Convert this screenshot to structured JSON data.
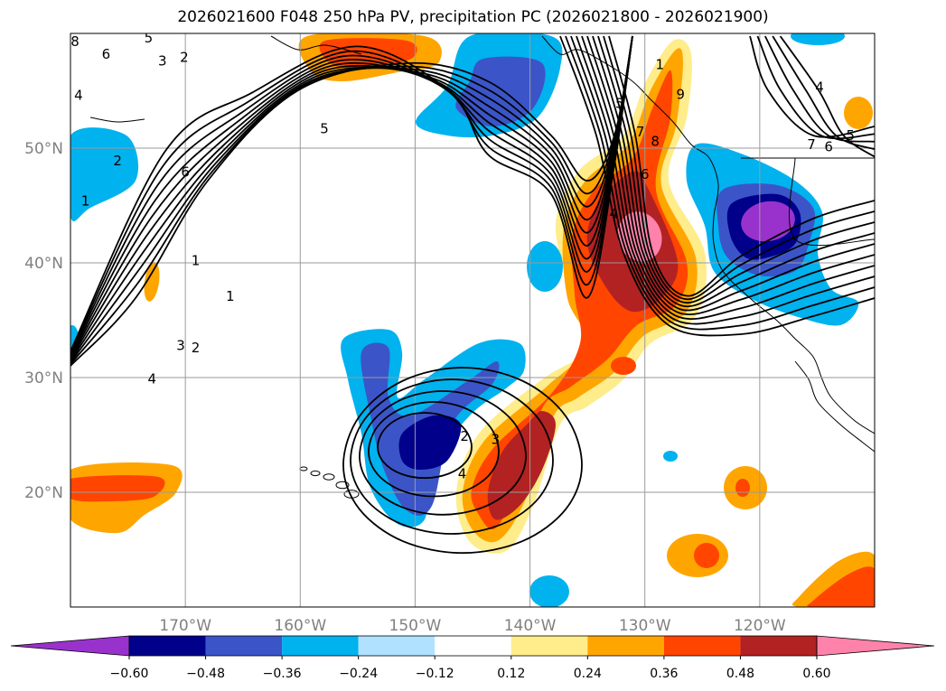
{
  "title": "2026021600 F048 250 hPa PV, precipitation PC (2026021800 - 2026021900)",
  "chart_data": {
    "type": "heatmap",
    "title": "2026021600 F048 250 hPa PV, precipitation PC (2026021800 - 2026021900)",
    "xlabel": "",
    "ylabel": "",
    "xlim": [
      -180,
      -110
    ],
    "ylim": [
      10,
      60
    ],
    "x_ticks": [
      {
        "value": -170,
        "label": "170°W"
      },
      {
        "value": -160,
        "label": "160°W"
      },
      {
        "value": -150,
        "label": "150°W"
      },
      {
        "value": -140,
        "label": "140°W"
      },
      {
        "value": -130,
        "label": "130°W"
      },
      {
        "value": -120,
        "label": "120°W"
      }
    ],
    "y_ticks": [
      {
        "value": 20,
        "label": "20°N"
      },
      {
        "value": 30,
        "label": "30°N"
      },
      {
        "value": 40,
        "label": "40°N"
      },
      {
        "value": 50,
        "label": "50°N"
      }
    ],
    "grid": true,
    "colorbar": {
      "position": "bottom",
      "extend": "both",
      "levels": [
        -0.6,
        -0.48,
        -0.36,
        -0.24,
        -0.12,
        0.12,
        0.24,
        0.36,
        0.48,
        0.6
      ],
      "level_labels": [
        "−0.60",
        "−0.48",
        "−0.36",
        "−0.24",
        "−0.12",
        "0.12",
        "0.24",
        "0.36",
        "0.48",
        "0.60"
      ],
      "colors": [
        "#9932cc",
        "#00008b",
        "#3b55c8",
        "#00b2ee",
        "#b0e2ff",
        "#ffffff",
        "#ffec8b",
        "#ffa500",
        "#ff4500",
        "#b22222",
        "#ff82ab"
      ]
    },
    "fields": [
      {
        "name": "PV (250 hPa) contours",
        "contour_levels": [
          1,
          2,
          3,
          4,
          5,
          6,
          7,
          8,
          9,
          10
        ]
      },
      {
        "name": "precipitation PC (shaded)"
      }
    ],
    "contour_labels": [
      {
        "text": "8",
        "lon": -179.6,
        "lat": 59.3
      },
      {
        "text": "6",
        "lon": -176.9,
        "lat": 58.2
      },
      {
        "text": "5",
        "lon": -173.2,
        "lat": 59.6
      },
      {
        "text": "3",
        "lon": -172.0,
        "lat": 57.6
      },
      {
        "text": "2",
        "lon": -170.1,
        "lat": 57.9
      },
      {
        "text": "4",
        "lon": -179.3,
        "lat": 54.6
      },
      {
        "text": "5",
        "lon": -157.9,
        "lat": 51.7
      },
      {
        "text": "2",
        "lon": -175.9,
        "lat": 48.9
      },
      {
        "text": "6",
        "lon": -170.0,
        "lat": 47.9
      },
      {
        "text": "1",
        "lon": -178.7,
        "lat": 45.4
      },
      {
        "text": "1",
        "lon": -169.1,
        "lat": 40.2
      },
      {
        "text": "1",
        "lon": -166.1,
        "lat": 37.1
      },
      {
        "text": "3",
        "lon": -170.4,
        "lat": 32.8
      },
      {
        "text": "2",
        "lon": -169.1,
        "lat": 32.6
      },
      {
        "text": "4",
        "lon": -172.9,
        "lat": 29.9
      },
      {
        "text": "2",
        "lon": -145.7,
        "lat": 24.9
      },
      {
        "text": "3",
        "lon": -143.0,
        "lat": 24.6
      },
      {
        "text": "4",
        "lon": -145.9,
        "lat": 21.6
      },
      {
        "text": "5",
        "lon": -132.2,
        "lat": 53.9
      },
      {
        "text": "1",
        "lon": -128.7,
        "lat": 57.3
      },
      {
        "text": "9",
        "lon": -126.9,
        "lat": 54.7
      },
      {
        "text": "8",
        "lon": -129.1,
        "lat": 50.6
      },
      {
        "text": "7",
        "lon": -130.4,
        "lat": 51.4
      },
      {
        "text": "6",
        "lon": -130.0,
        "lat": 47.7
      },
      {
        "text": "4",
        "lon": -132.7,
        "lat": 44.3
      },
      {
        "text": "4",
        "lon": -114.8,
        "lat": 55.3
      },
      {
        "text": "7",
        "lon": -115.5,
        "lat": 50.3
      },
      {
        "text": "6",
        "lon": -114.0,
        "lat": 50.1
      },
      {
        "text": "5",
        "lon": -112.1,
        "lat": 51.1
      }
    ]
  }
}
